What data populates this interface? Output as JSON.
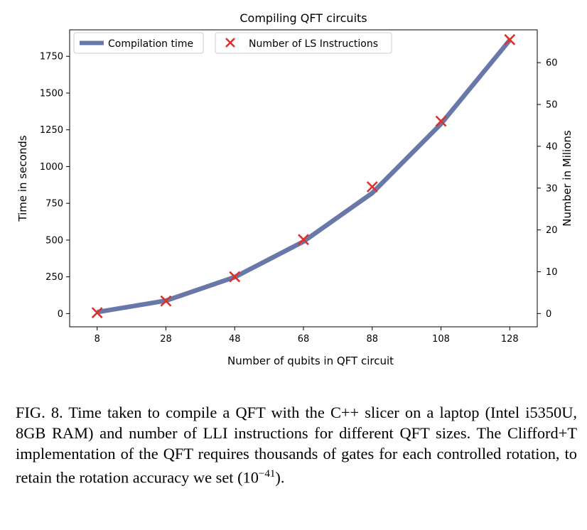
{
  "chart_data": {
    "type": "line",
    "title": "Compiling QFT circuits",
    "xlabel": "Number of qubits in QFT circuit",
    "ylabel": "Time in seconds",
    "y2label": "Number in Milions",
    "x": [
      8,
      28,
      48,
      68,
      88,
      108,
      128
    ],
    "xlim": [
      0,
      136
    ],
    "ylim": [
      -90,
      1930
    ],
    "y2lim": [
      -3.17,
      67.85
    ],
    "xticks": [
      "8",
      "28",
      "48",
      "68",
      "88",
      "108",
      "128"
    ],
    "yticks": [
      0,
      250,
      500,
      750,
      1000,
      1250,
      1500,
      1750
    ],
    "y2ticks": [
      0,
      10,
      20,
      30,
      40,
      50,
      60
    ],
    "grid": false,
    "legend_position": "top-left",
    "series": [
      {
        "name": "Compilation time",
        "axis": "left",
        "style": "line",
        "color": "#6878a8",
        "values": [
          10,
          88,
          248,
          490,
          820,
          1290,
          1860
        ]
      },
      {
        "name": "Number of LS Instructions",
        "axis": "right",
        "style": "x-marker",
        "color": "#e0302a",
        "values": [
          0.2,
          3.0,
          8.8,
          17.7,
          30.3,
          46.0,
          65.5
        ]
      }
    ]
  },
  "caption": {
    "prefix": "FIG. 8. Time taken to compile a QFT with the C++ slicer on a laptop (Intel i5350U, 8GB RAM) and number of LLI instructions for different QFT sizes. The Clifford+T implementation of the QFT requires thousands of gates for each controlled rotation, to retain the rotation accuracy we set (10",
    "exponent": "−41",
    "suffix": ")."
  }
}
